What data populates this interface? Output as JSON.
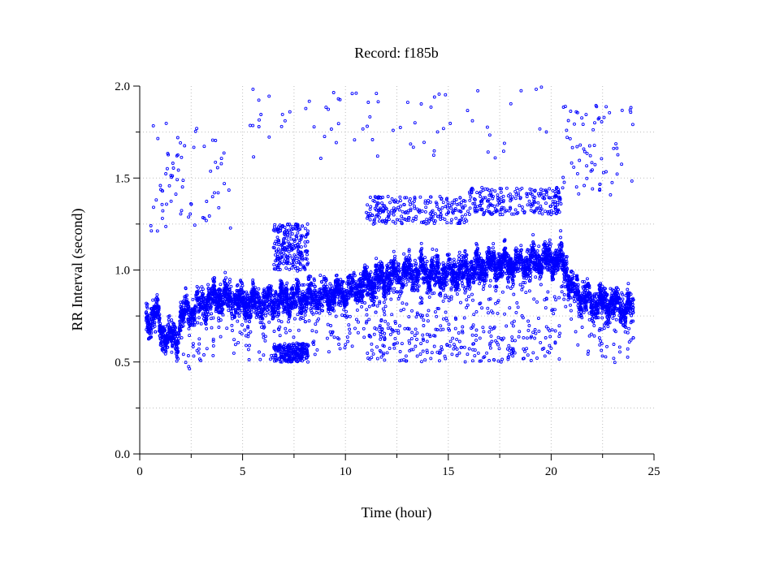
{
  "chart_data": {
    "type": "scatter",
    "title": "Record:  f185b",
    "xlabel": "Time (hour)",
    "ylabel": "RR Interval (second)",
    "xlim": [
      0,
      25
    ],
    "ylim": [
      0,
      2.0
    ],
    "x_ticks": [
      "0",
      "5",
      "10",
      "15",
      "20",
      "25"
    ],
    "y_ticks": [
      "0.0",
      "0.5",
      "1.0",
      "1.5",
      "2.0"
    ],
    "grid": true,
    "marker": "open-circle",
    "series": [
      {
        "color": "#0000ff",
        "x_range": [
          0.3,
          24.0
        ],
        "main_band_trend": [
          [
            0.3,
            0.72
          ],
          [
            0.8,
            0.76
          ],
          [
            1.1,
            0.64
          ],
          [
            1.8,
            0.62
          ],
          [
            2.0,
            0.75
          ],
          [
            3.0,
            0.82
          ],
          [
            4.0,
            0.86
          ],
          [
            5.0,
            0.82
          ],
          [
            6.0,
            0.82
          ],
          [
            7.0,
            0.84
          ],
          [
            8.0,
            0.85
          ],
          [
            9.0,
            0.86
          ],
          [
            10.0,
            0.88
          ],
          [
            11.0,
            0.93
          ],
          [
            12.0,
            0.96
          ],
          [
            13.0,
            0.99
          ],
          [
            14.0,
            0.99
          ],
          [
            15.0,
            0.98
          ],
          [
            16.0,
            1.0
          ],
          [
            17.0,
            1.03
          ],
          [
            18.0,
            1.03
          ],
          [
            19.0,
            1.04
          ],
          [
            20.0,
            1.06
          ],
          [
            20.6,
            1.05
          ],
          [
            21.0,
            0.9
          ],
          [
            22.0,
            0.82
          ],
          [
            23.0,
            0.82
          ],
          [
            24.0,
            0.78
          ]
        ],
        "clusters": [
          {
            "x": [
              6.5,
              8.2
            ],
            "y": [
              1.0,
              1.25
            ]
          },
          {
            "x": [
              11.0,
              16.0
            ],
            "y": [
              1.25,
              1.4
            ]
          },
          {
            "x": [
              16.0,
              20.5
            ],
            "y": [
              1.3,
              1.45
            ]
          },
          {
            "x": [
              11.0,
              20.5
            ],
            "y": [
              0.5,
              0.7
            ]
          },
          {
            "x": [
              0.5,
              4.5
            ],
            "y": [
              1.2,
              1.8
            ]
          },
          {
            "x": [
              5.0,
              20.0
            ],
            "y": [
              1.6,
              2.0
            ]
          },
          {
            "x": [
              20.5,
              24.0
            ],
            "y": [
              1.4,
              1.9
            ]
          },
          {
            "x": [
              6.5,
              8.2
            ],
            "y": [
              0.5,
              0.6
            ]
          }
        ]
      }
    ]
  }
}
